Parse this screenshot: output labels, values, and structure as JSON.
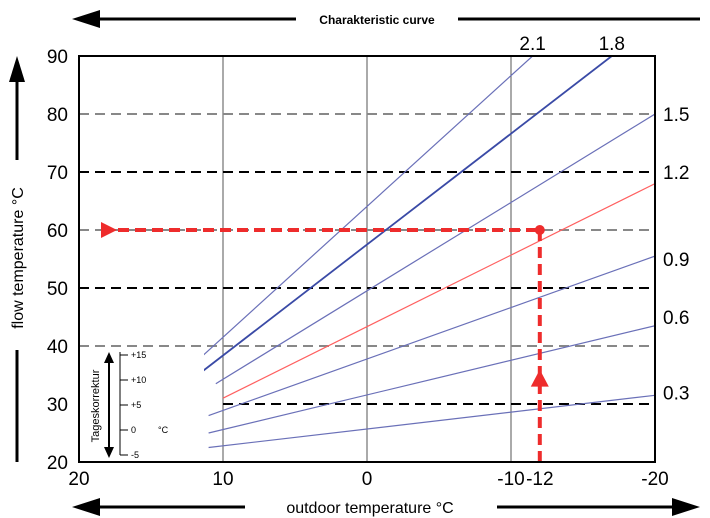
{
  "chart_data": {
    "type": "line",
    "title": "Charakteristic curve",
    "xlabel": "outdoor temperature °C",
    "ylabel": "flow temperature  °C",
    "x_reversed": true,
    "xlim": [
      20,
      -20
    ],
    "ylim": [
      20,
      90
    ],
    "xticks": [
      20,
      10,
      0,
      -10,
      -12,
      -20
    ],
    "xtick_labels": [
      "20",
      "10",
      "0",
      "-10",
      "-12",
      "-20"
    ],
    "yticks": [
      20,
      30,
      40,
      50,
      60,
      70,
      80,
      90
    ],
    "ytick_labels": [
      "20",
      "30",
      "40",
      "50",
      "60",
      "70",
      "80",
      "90"
    ],
    "dashed_levels": [
      {
        "y": 80,
        "from_x": 20,
        "color": "#888888"
      },
      {
        "y": 70,
        "from_x": 20,
        "color": "#000000"
      },
      {
        "y": 60,
        "from_x": 20,
        "color": "#888888"
      },
      {
        "y": 50,
        "from_x": 20,
        "color": "#000000"
      },
      {
        "y": 40,
        "from_x": 20,
        "color": "#888888"
      },
      {
        "y": 30,
        "from_x": 10,
        "color": "#000000"
      }
    ],
    "series": [
      {
        "name": "0.3",
        "x": [
          11,
          -20
        ],
        "y": [
          22.5,
          31.5
        ],
        "color": "#6a70b8"
      },
      {
        "name": "0.6",
        "x": [
          11,
          -20
        ],
        "y": [
          25,
          43.5
        ],
        "color": "#6a70b8"
      },
      {
        "name": "0.9",
        "x": [
          11,
          -20
        ],
        "y": [
          28,
          55.5
        ],
        "color": "#6a70b8"
      },
      {
        "name": "1.2",
        "x": [
          10,
          -20
        ],
        "y": [
          31,
          68
        ],
        "color": "#ff6060"
      },
      {
        "name": "1.5",
        "x": [
          10.5,
          -20
        ],
        "y": [
          33.5,
          80
        ],
        "color": "#6a70b8"
      },
      {
        "name": "1.8",
        "x": [
          11.5,
          -17
        ],
        "y": [
          35.5,
          90
        ],
        "color": "#3a4aa6"
      },
      {
        "name": "2.1",
        "x": [
          12,
          -11.5
        ],
        "y": [
          37,
          90
        ],
        "color": "#6a70b8"
      }
    ],
    "right_labels": [
      {
        "text": "1.5",
        "y": 80
      },
      {
        "text": "1.2",
        "y": 70
      },
      {
        "text": "0.9",
        "y": 55
      },
      {
        "text": "0.6",
        "y": 45
      },
      {
        "text": "0.3",
        "y": 32
      }
    ],
    "top_labels": [
      {
        "text": "2.1",
        "x": -11.5
      },
      {
        "text": "1.8",
        "x": -17
      }
    ],
    "example": {
      "outdoor_temp": -12,
      "flow_temp": 60,
      "color": "#ee2c2c"
    },
    "inset": {
      "title": "Tageskorrektur",
      "unit": "°C",
      "ticks": [
        "+15",
        "+10",
        "+5",
        "0",
        "-5"
      ]
    },
    "grid": true
  }
}
